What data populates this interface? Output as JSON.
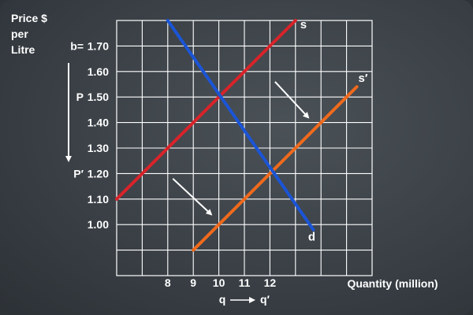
{
  "chart_data": {
    "type": "line",
    "ylabel_lines": [
      "Price $",
      "per",
      "Litre"
    ],
    "xlabel": "Quantity (million)",
    "x_grid_range": [
      6,
      16
    ],
    "y_grid_range": [
      0.8,
      1.8
    ],
    "grid": true,
    "y_ticks": [
      {
        "value": 1.7,
        "label": "1.70",
        "prefix": "b="
      },
      {
        "value": 1.6,
        "label": "1.60",
        "prefix": ""
      },
      {
        "value": 1.5,
        "label": "1.50",
        "prefix": "P"
      },
      {
        "value": 1.4,
        "label": "1.40",
        "prefix": ""
      },
      {
        "value": 1.3,
        "label": "1.30",
        "prefix": ""
      },
      {
        "value": 1.2,
        "label": "1.20",
        "prefix": "P′"
      },
      {
        "value": 1.1,
        "label": "1.10",
        "prefix": ""
      },
      {
        "value": 1.0,
        "label": "1.00",
        "prefix": ""
      }
    ],
    "x_ticks": [
      {
        "value": 8,
        "label": "8"
      },
      {
        "value": 9,
        "label": "9"
      },
      {
        "value": 10,
        "label": "10"
      },
      {
        "value": 11,
        "label": "11"
      },
      {
        "value": 12,
        "label": "12"
      }
    ],
    "x_shift_labels": {
      "from": "q",
      "to": "q′"
    },
    "series": [
      {
        "name": "s",
        "color": "#d8232a",
        "x": [
          6,
          13
        ],
        "y": [
          1.1,
          1.8
        ]
      },
      {
        "name": "s′",
        "color": "#ef6a1c",
        "x": [
          9,
          15.4
        ],
        "y": [
          0.9,
          1.54
        ]
      },
      {
        "name": "d",
        "color": "#1b55d6",
        "x": [
          8,
          13.7
        ],
        "y": [
          1.8,
          0.98
        ]
      }
    ],
    "annotations": [
      {
        "type": "arrow",
        "from": [
          12.2,
          1.56
        ],
        "to": [
          13.5,
          1.42
        ]
      },
      {
        "type": "arrow",
        "from": [
          8.2,
          1.18
        ],
        "to": [
          9.7,
          1.04
        ]
      }
    ]
  }
}
